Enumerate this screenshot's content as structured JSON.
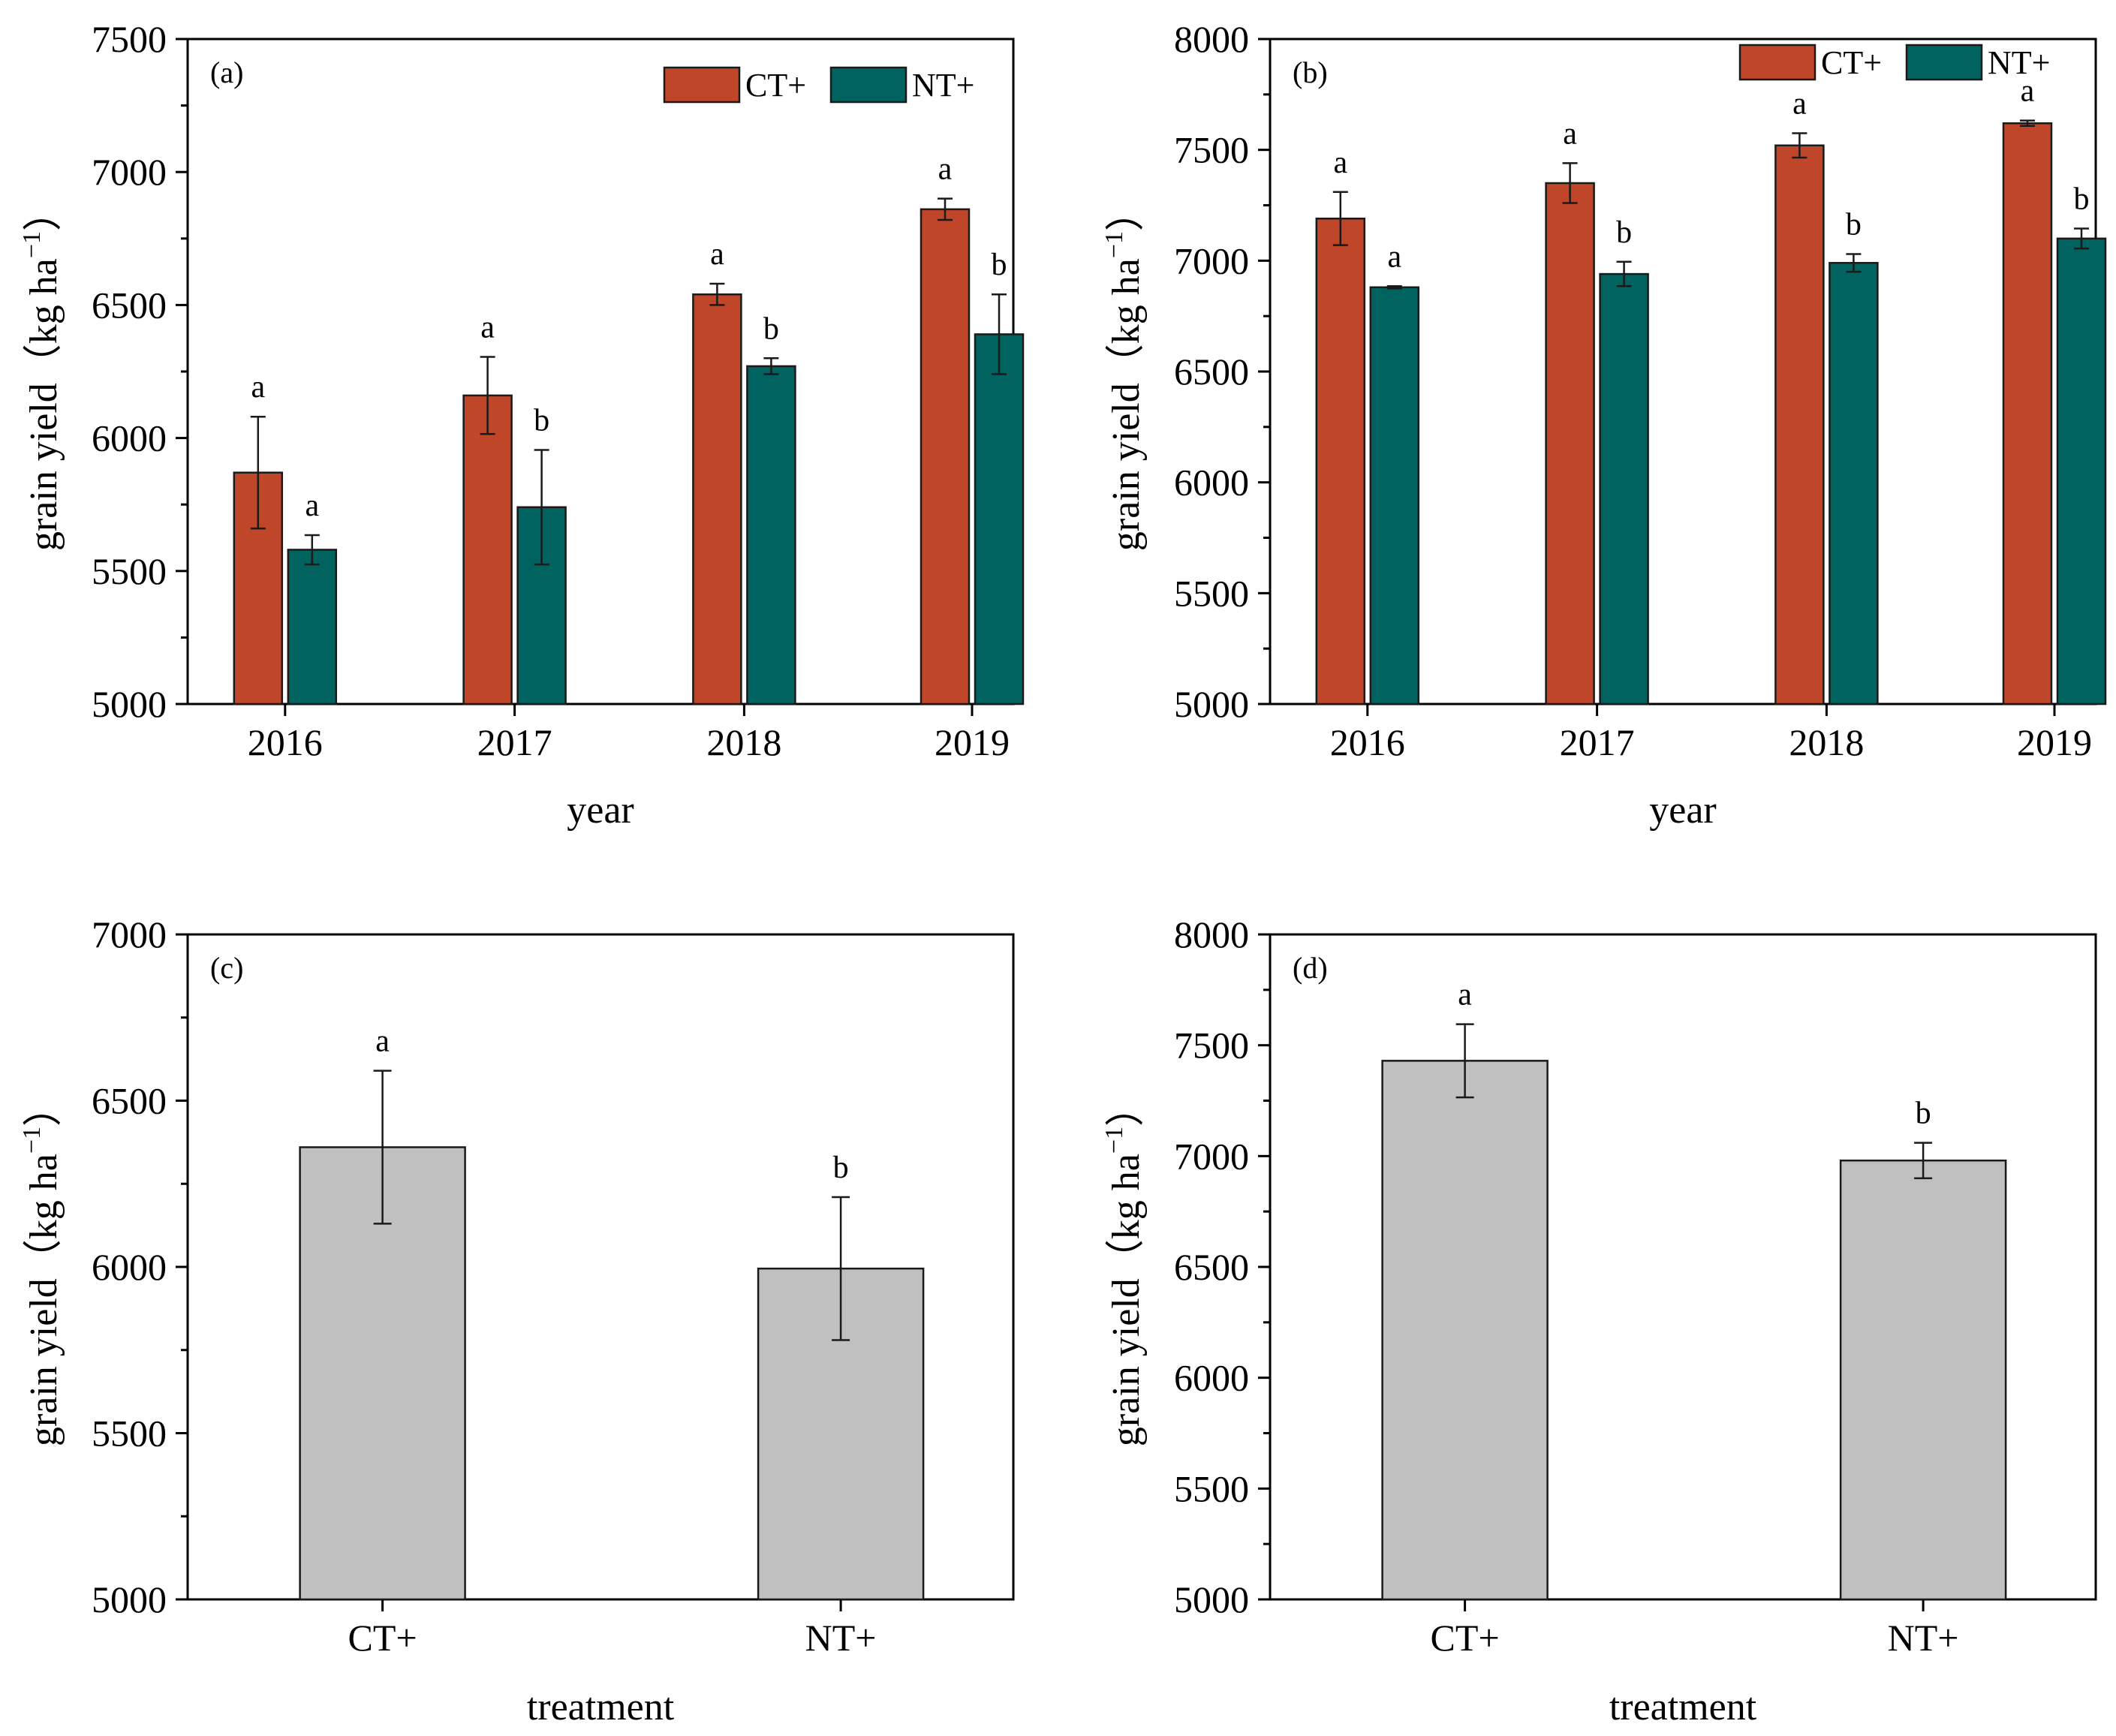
{
  "figure": {
    "colors": {
      "ct": "#c0462a",
      "nt": "#00635f",
      "gray": "#c0c0c0",
      "axis": "#000000"
    }
  },
  "chart_data": [
    {
      "id": "a",
      "type": "bar",
      "panel_label": "(a)",
      "title": "",
      "xlabel": "year",
      "ylabel": "grain yield（kg ha",
      "ylabel_sup": "−1",
      "ylabel_close": "）",
      "categories": [
        "2016",
        "2017",
        "2018",
        "2019"
      ],
      "ylim": [
        5000,
        7500
      ],
      "yticks": [
        "5000",
        "5500",
        "6000",
        "6500",
        "7000",
        "7500"
      ],
      "legend": [
        "CT+",
        "NT+"
      ],
      "legend_position": "top-right",
      "series": [
        {
          "name": "CT+",
          "values": [
            5870,
            6160,
            6540,
            6860
          ],
          "errors": [
            210,
            145,
            40,
            40
          ],
          "letters": [
            "a",
            "a",
            "a",
            "a"
          ]
        },
        {
          "name": "NT+",
          "values": [
            5580,
            5740,
            6270,
            6390
          ],
          "errors": [
            55,
            215,
            30,
            150
          ],
          "letters": [
            "a",
            "b",
            "b",
            "b"
          ]
        }
      ]
    },
    {
      "id": "b",
      "type": "bar",
      "panel_label": "(b)",
      "title": "",
      "xlabel": "year",
      "ylabel": "grain yield（kg ha",
      "ylabel_sup": "−1",
      "ylabel_close": "）",
      "categories": [
        "2016",
        "2017",
        "2018",
        "2019"
      ],
      "ylim": [
        5000,
        8000
      ],
      "yticks": [
        "5000",
        "5500",
        "6000",
        "6500",
        "7000",
        "7500",
        "8000"
      ],
      "legend": [
        "CT+",
        "NT+"
      ],
      "legend_position": "top-right",
      "series": [
        {
          "name": "CT+",
          "values": [
            7190,
            7350,
            7520,
            7620
          ],
          "errors": [
            120,
            90,
            55,
            12
          ],
          "letters": [
            "a",
            "a",
            "a",
            "a"
          ]
        },
        {
          "name": "NT+",
          "values": [
            6880,
            6940,
            6990,
            7100
          ],
          "errors": [
            5,
            55,
            40,
            45
          ],
          "letters": [
            "a",
            "b",
            "b",
            "b"
          ]
        }
      ]
    },
    {
      "id": "c",
      "type": "bar",
      "panel_label": "(c)",
      "title": "",
      "xlabel": "treatment",
      "ylabel": "grain yield（kg ha",
      "ylabel_sup": "−1",
      "ylabel_close": "）",
      "categories": [
        "CT+",
        "NT+"
      ],
      "ylim": [
        5000,
        7000
      ],
      "yticks": [
        "5000",
        "5500",
        "6000",
        "6500",
        "7000"
      ],
      "series": [
        {
          "name": "",
          "values": [
            6360,
            5995
          ],
          "errors": [
            230,
            215
          ],
          "letters": [
            "a",
            "b"
          ]
        }
      ]
    },
    {
      "id": "d",
      "type": "bar",
      "panel_label": "(d)",
      "title": "",
      "xlabel": "treatment",
      "ylabel": "grain yield（kg ha",
      "ylabel_sup": "−1",
      "ylabel_close": "）",
      "categories": [
        "CT+",
        "NT+"
      ],
      "ylim": [
        5000,
        8000
      ],
      "yticks": [
        "5000",
        "5500",
        "6000",
        "6500",
        "7000",
        "7500",
        "8000"
      ],
      "series": [
        {
          "name": "",
          "values": [
            7430,
            6980
          ],
          "errors": [
            165,
            80
          ],
          "letters": [
            "a",
            "b"
          ]
        }
      ]
    }
  ]
}
